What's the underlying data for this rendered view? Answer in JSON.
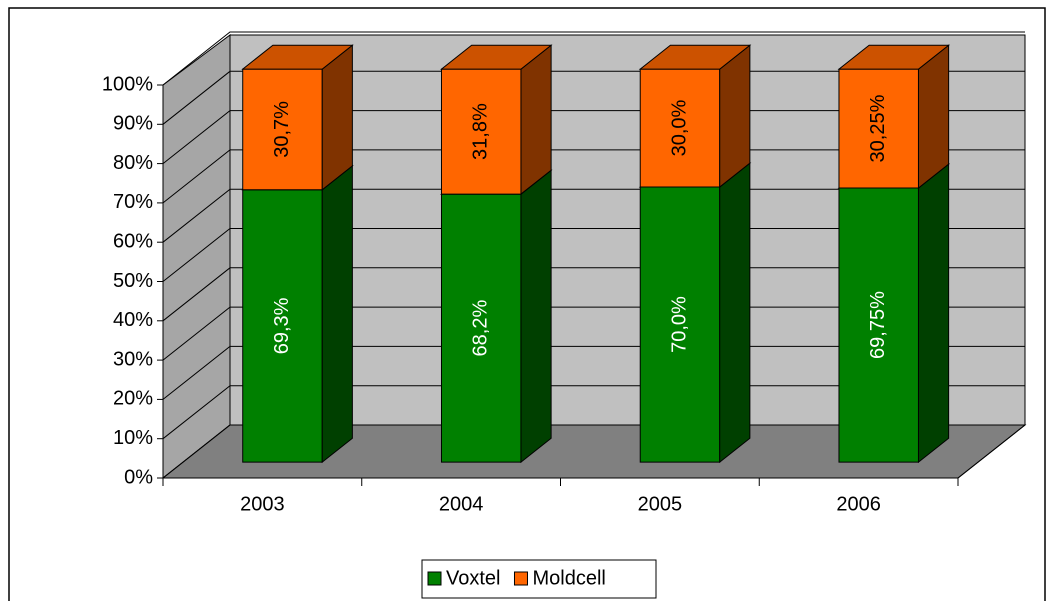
{
  "chart_data": {
    "type": "bar3d_stacked",
    "categories": [
      "2003",
      "2004",
      "2005",
      "2006"
    ],
    "series": [
      {
        "name": "Voxtel",
        "color": "#008000",
        "values": [
          69.3,
          68.2,
          70.0,
          69.75
        ],
        "value_labels": [
          "69,3%",
          "68,2%",
          "70,0%",
          "69,75%"
        ]
      },
      {
        "name": "Moldcell",
        "color": "#ff6600",
        "values": [
          30.7,
          31.8,
          30.0,
          30.25
        ],
        "value_labels": [
          "30,7%",
          "31,8%",
          "30,0%",
          "30,25%"
        ]
      }
    ],
    "ylim": [
      0,
      100
    ],
    "yticks": [
      {
        "value": 0,
        "label": "0%"
      },
      {
        "value": 10,
        "label": "10%"
      },
      {
        "value": 20,
        "label": "20%"
      },
      {
        "value": 30,
        "label": "30%"
      },
      {
        "value": 40,
        "label": "40%"
      },
      {
        "value": 50,
        "label": "50%"
      },
      {
        "value": 60,
        "label": "60%"
      },
      {
        "value": 70,
        "label": "70%"
      },
      {
        "value": 80,
        "label": "80%"
      },
      {
        "value": 90,
        "label": "90%"
      },
      {
        "value": 100,
        "label": "100%"
      }
    ],
    "grid": true,
    "legend": "bottom"
  }
}
